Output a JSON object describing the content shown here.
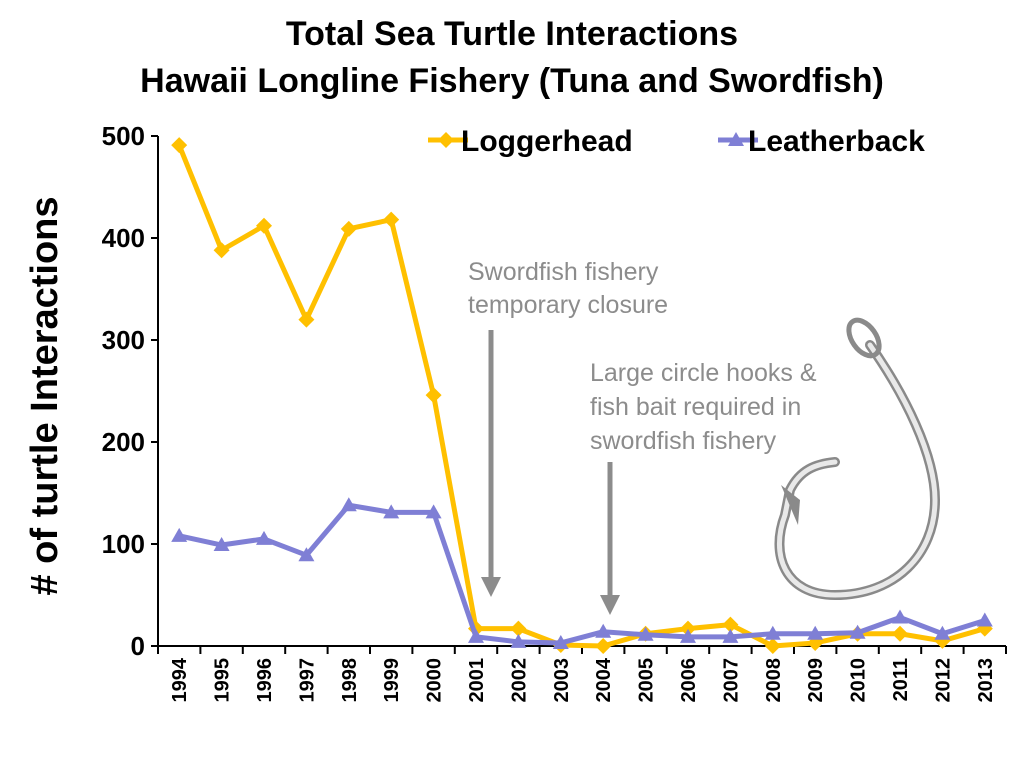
{
  "chart_data": {
    "type": "line",
    "title": [
      "Total Sea Turtle Interactions",
      "Hawaii Longline Fishery (Tuna and Swordfish)"
    ],
    "ylabel": "# of turtle Interactions",
    "xlabel": "",
    "ylim": [
      0,
      500
    ],
    "yticks": [
      "0",
      "100",
      "200",
      "300",
      "400",
      "500"
    ],
    "categories": [
      "1994",
      "1995",
      "1996",
      "1997",
      "1998",
      "1999",
      "2000",
      "2001",
      "2002",
      "2003",
      "2004",
      "2005",
      "2006",
      "2007",
      "2008",
      "2009",
      "2010",
      "2011",
      "2012",
      "2013"
    ],
    "grid": false,
    "legend_position": "top-right",
    "series": [
      {
        "name": "Loggerhead",
        "color": "#FFC000",
        "marker": "diamond",
        "values": [
          491,
          388,
          412,
          320,
          409,
          418,
          246,
          17,
          17,
          1,
          0,
          12,
          17,
          21,
          0,
          3,
          12,
          12,
          5,
          17
        ]
      },
      {
        "name": "Leatherback",
        "color": "#7F7FD5",
        "marker": "triangle",
        "values": [
          108,
          99,
          105,
          89,
          138,
          131,
          131,
          9,
          4,
          3,
          14,
          11,
          9,
          9,
          12,
          12,
          13,
          28,
          12,
          25
        ]
      }
    ],
    "annotations": [
      {
        "lines": [
          "Swordfish fishery",
          "temporary closure"
        ],
        "arrow_year": "2001",
        "color": "#8c8c8c"
      },
      {
        "lines": [
          "Large circle hooks &",
          "fish bait required in",
          "swordfish fishery"
        ],
        "arrow_year": "2004",
        "color": "#8c8c8c"
      }
    ],
    "decoration": "circle-hook-icon"
  }
}
